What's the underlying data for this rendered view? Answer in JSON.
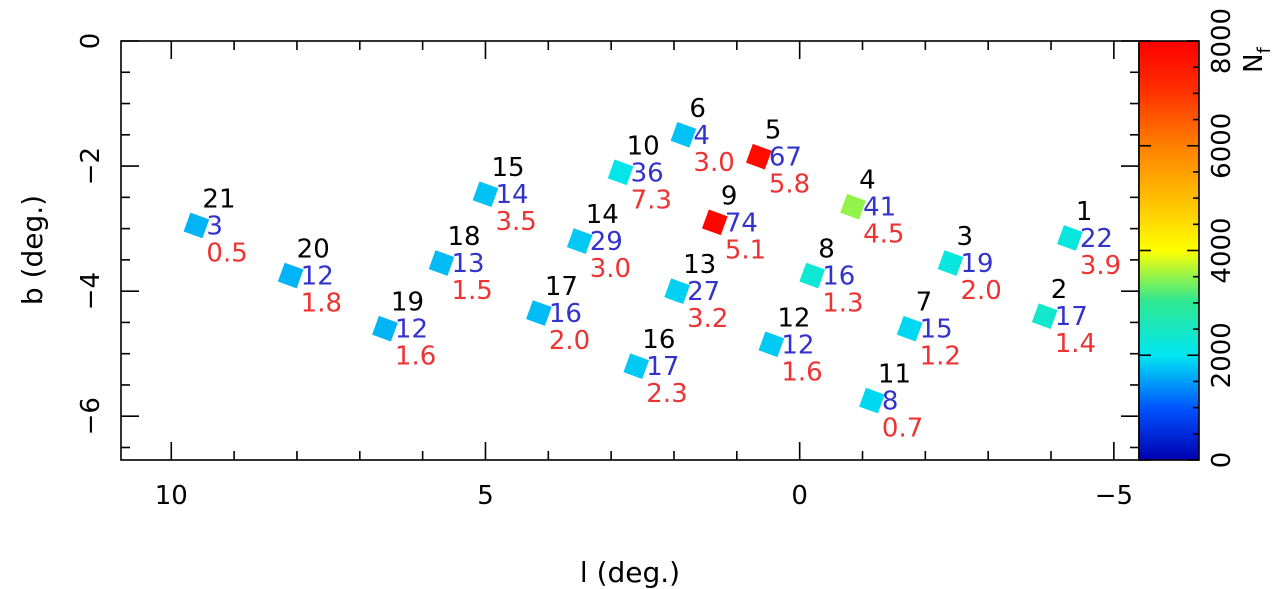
{
  "chart_data": {
    "type": "scatter",
    "title": "",
    "xlabel": "l (deg.)",
    "ylabel": "b (deg.)",
    "xlim": [
      10.8,
      -5.4
    ],
    "ylim": [
      -6.7,
      0
    ],
    "xticks": [
      10,
      5,
      0,
      -5
    ],
    "xtick_labels": [
      "10",
      "5",
      "0",
      "−5"
    ],
    "yticks": [
      0,
      -2,
      -4,
      -6
    ],
    "ytick_labels": [
      "0",
      "−2",
      "−4",
      "−6"
    ],
    "grid": false,
    "legend": "none",
    "colorbar": {
      "label_main": "N",
      "label_sub": "f",
      "min": 0,
      "max": 8000,
      "ticks": [
        0,
        2000,
        4000,
        6000,
        8000
      ],
      "tick_labels": [
        "0",
        "2000",
        "4000",
        "6000",
        "8000"
      ]
    },
    "label_colors": {
      "id": "#000000",
      "count": "#3333cc",
      "value": "#ee3333"
    },
    "fields": [
      {
        "id": "1",
        "l": -4.3,
        "b": -3.15,
        "nf": 2200,
        "count": "22",
        "value": "3.9"
      },
      {
        "id": "2",
        "l": -3.9,
        "b": -4.4,
        "nf": 2400,
        "count": "17",
        "value": "1.4"
      },
      {
        "id": "3",
        "l": -2.4,
        "b": -3.55,
        "nf": 2200,
        "count": "19",
        "value": "2.0"
      },
      {
        "id": "4",
        "l": -0.85,
        "b": -2.65,
        "nf": 3500,
        "count": "41",
        "value": "4.5"
      },
      {
        "id": "5",
        "l": 0.65,
        "b": -1.85,
        "nf": 7800,
        "count": "67",
        "value": "5.8"
      },
      {
        "id": "6",
        "l": 1.85,
        "b": -1.5,
        "nf": 1750,
        "count": "4",
        "value": "3.0"
      },
      {
        "id": "7",
        "l": -1.75,
        "b": -4.6,
        "nf": 1900,
        "count": "15",
        "value": "1.2"
      },
      {
        "id": "8",
        "l": -0.2,
        "b": -3.75,
        "nf": 2300,
        "count": "16",
        "value": "1.3"
      },
      {
        "id": "9",
        "l": 1.35,
        "b": -2.9,
        "nf": 7900,
        "count": "74",
        "value": "5.1"
      },
      {
        "id": "10",
        "l": 2.85,
        "b": -2.1,
        "nf": 2050,
        "count": "36",
        "value": "7.3"
      },
      {
        "id": "11",
        "l": -1.15,
        "b": -5.75,
        "nf": 1900,
        "count": "8",
        "value": "0.7"
      },
      {
        "id": "12",
        "l": 0.45,
        "b": -4.85,
        "nf": 1800,
        "count": "12",
        "value": "1.6"
      },
      {
        "id": "13",
        "l": 1.95,
        "b": -4.0,
        "nf": 1850,
        "count": "27",
        "value": "3.2"
      },
      {
        "id": "14",
        "l": 3.5,
        "b": -3.2,
        "nf": 1800,
        "count": "29",
        "value": "3.0"
      },
      {
        "id": "15",
        "l": 5.0,
        "b": -2.45,
        "nf": 1750,
        "count": "14",
        "value": "3.5"
      },
      {
        "id": "16",
        "l": 2.6,
        "b": -5.2,
        "nf": 1800,
        "count": "17",
        "value": "2.3"
      },
      {
        "id": "17",
        "l": 4.15,
        "b": -4.35,
        "nf": 1700,
        "count": "16",
        "value": "2.0"
      },
      {
        "id": "18",
        "l": 5.7,
        "b": -3.55,
        "nf": 1700,
        "count": "13",
        "value": "1.5"
      },
      {
        "id": "19",
        "l": 6.6,
        "b": -4.6,
        "nf": 1650,
        "count": "12",
        "value": "1.6"
      },
      {
        "id": "20",
        "l": 8.1,
        "b": -3.75,
        "nf": 1650,
        "count": "12",
        "value": "1.8"
      },
      {
        "id": "21",
        "l": 9.6,
        "b": -2.95,
        "nf": 1650,
        "count": "3",
        "value": "0.5"
      }
    ]
  }
}
